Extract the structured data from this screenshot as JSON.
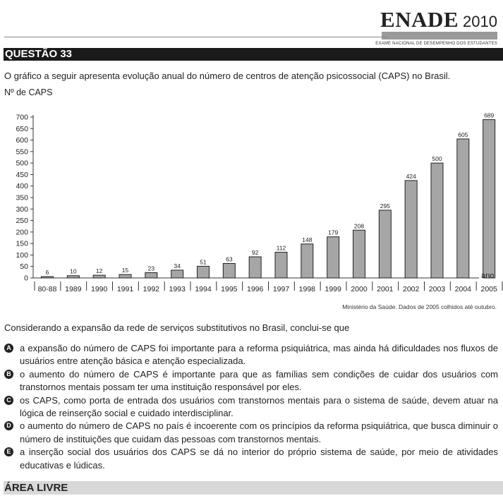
{
  "header": {
    "brand": "ENADE",
    "year": "2010",
    "subtitle": "EXAME NACIONAL DE DESEMPENHO DOS ESTUDANTES"
  },
  "question": {
    "label": "QUESTÃO 33",
    "intro": "O gráfico a seguir apresenta evolução anual do número de centros de atenção psicossocial (CAPS) no Brasil.",
    "stem": "Considerando a expansão da rede de serviços substitutivos no Brasil, conclui-se que",
    "options": [
      {
        "letter": "A",
        "text": "a expansão do número de CAPS foi importante para a reforma psiquiátrica, mas ainda há dificuldades nos fluxos de usuários entre atenção básica e atenção especializada."
      },
      {
        "letter": "B",
        "text": "o aumento do número de CAPS é importante para que as famílias sem condições de cuidar dos usuários com transtornos mentais possam ter uma instituição responsável por eles."
      },
      {
        "letter": "C",
        "text": "os CAPS, como porta de entrada dos usuários com transtornos mentais para o sistema de saúde, devem atuar na lógica de reinserção social e cuidado interdisciplinar."
      },
      {
        "letter": "D",
        "text": "o aumento do número de CAPS no país é incoerente com os princípios da reforma psiquiátrica, que busca diminuir o número de instituições que cuidam das pessoas com transtornos mentais."
      },
      {
        "letter": "E",
        "text": "a inserção social dos usuários dos CAPS se dá no interior do próprio sistema de saúde, por meio de atividades educativas e lúdicas."
      }
    ]
  },
  "footer": {
    "area_label": "ÁREA LIVRE"
  },
  "chart_data": {
    "type": "bar",
    "title": "",
    "ylabel": "Nº de CAPS",
    "xlabel": "ano",
    "categories": [
      "80-88",
      "1989",
      "1990",
      "1991",
      "1992",
      "1993",
      "1994",
      "1995",
      "1996",
      "1997",
      "1998",
      "1999",
      "2000",
      "2001",
      "2002",
      "2003",
      "2004",
      "2005"
    ],
    "values": [
      6,
      10,
      12,
      15,
      23,
      34,
      51,
      63,
      92,
      112,
      148,
      179,
      208,
      295,
      424,
      500,
      605,
      689
    ],
    "data_labels": [
      "6",
      "10",
      "12",
      "15",
      "23",
      "34",
      "51",
      "63",
      "92",
      "112",
      "148",
      "179",
      "208",
      "295",
      "424",
      "500",
      "605",
      "689"
    ],
    "ylim": [
      0,
      700
    ],
    "yticks": [
      0,
      50,
      100,
      150,
      200,
      250,
      300,
      350,
      400,
      450,
      500,
      550,
      600,
      650,
      700
    ],
    "ytick_labels": [
      "0",
      "50",
      "100",
      "150",
      "200",
      "250",
      "300",
      "350",
      "400",
      "450",
      "500",
      "550",
      "600",
      "650",
      "700"
    ],
    "bar_color": "#a6a6a6",
    "grid": false,
    "source": "Ministério da Saúde. Dados de 2005 colhidos até outubro."
  }
}
